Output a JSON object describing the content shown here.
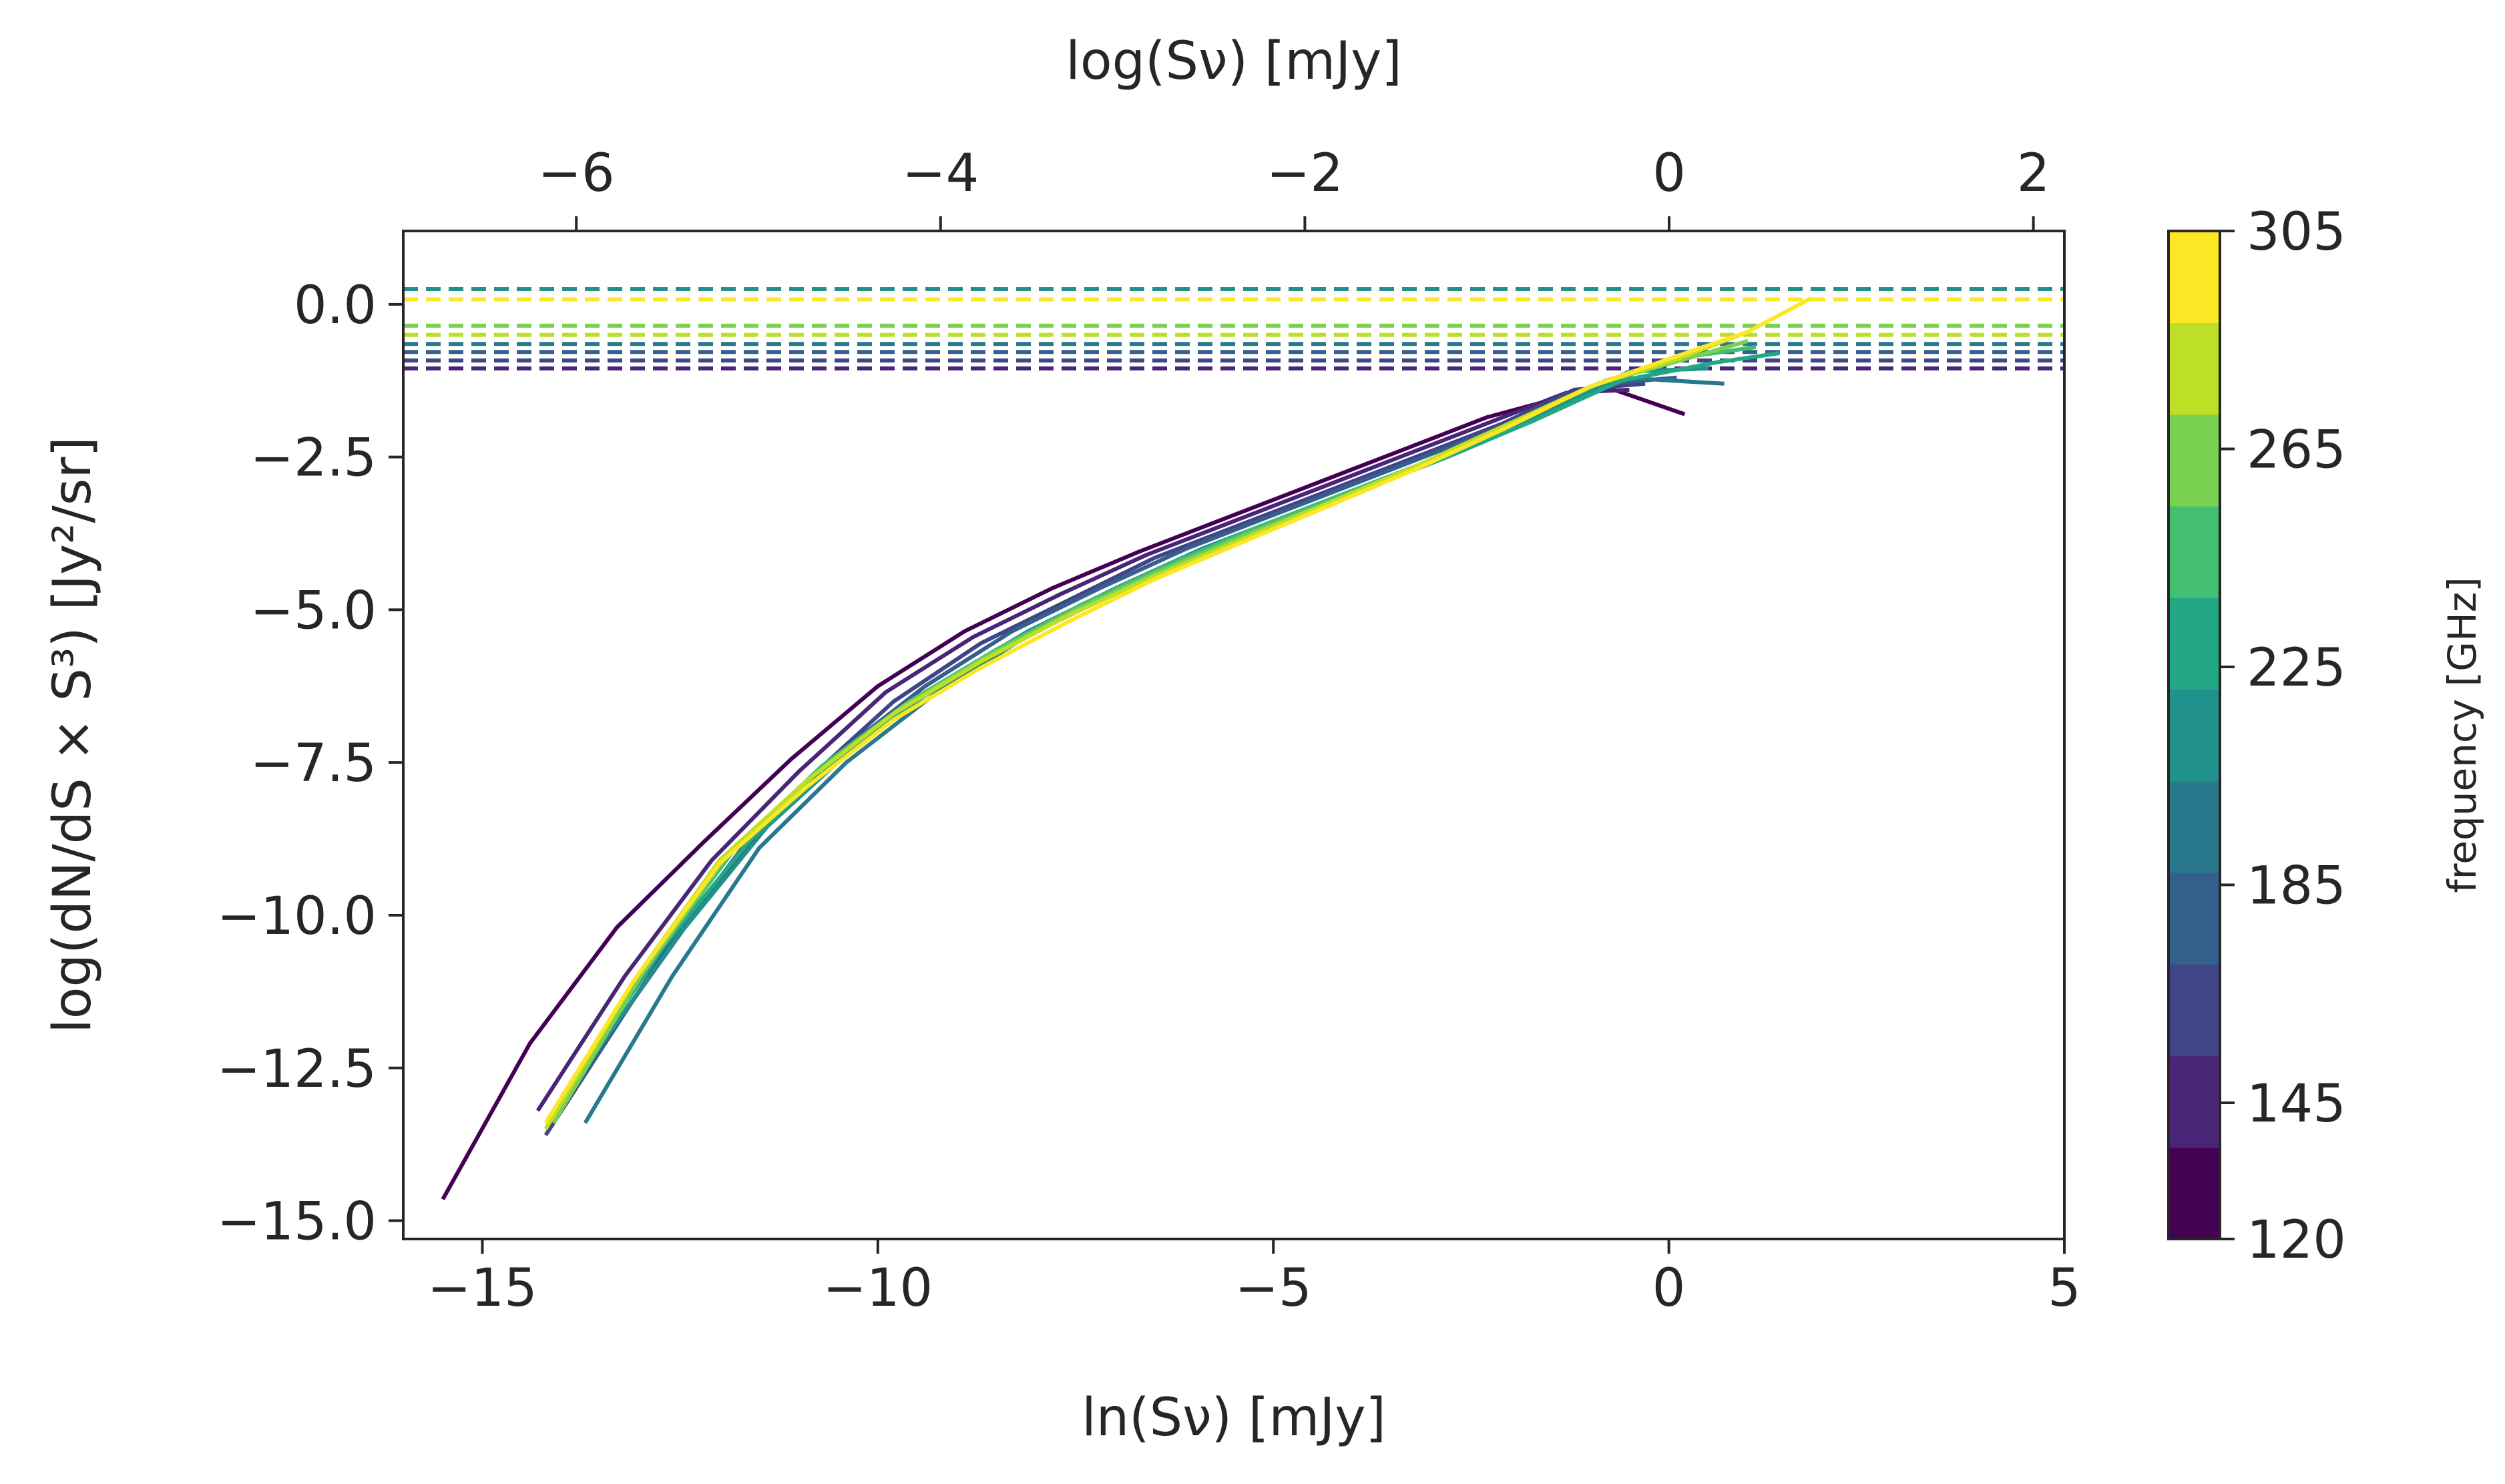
{
  "chart_data": {
    "type": "line",
    "xlabel_bottom": "ln(Sν) [mJy]",
    "xlabel_top": "log(Sν) [mJy]",
    "ylabel": "log(dN/dS  × S³) [Jy²/sr]",
    "xlim": [
      -16,
      5
    ],
    "ylim": [
      -15.3,
      1.2
    ],
    "top_xlim": [
      -6.95,
      2.17
    ],
    "x_ticks": [
      -15,
      -10,
      -5,
      0,
      5
    ],
    "x_tick_labels": [
      "−15",
      "−10",
      "−5",
      "0",
      "5"
    ],
    "top_ticks": [
      -6,
      -4,
      -2,
      0,
      2
    ],
    "top_tick_labels": [
      "−6",
      "−4",
      "−2",
      "0",
      "2"
    ],
    "y_ticks": [
      0.0,
      -2.5,
      -5.0,
      -7.5,
      -10.0,
      -12.5,
      -15.0
    ],
    "y_tick_labels": [
      "0.0",
      "−2.5",
      "−5.0",
      "−7.5",
      "−10.0",
      "−12.5",
      "−15.0"
    ],
    "grid": false,
    "colorbar": {
      "label": "frequency [GHz]",
      "range": [
        120,
        305
      ],
      "ticks": [
        120,
        145,
        185,
        225,
        265,
        305
      ],
      "tick_labels": [
        "120",
        "145",
        "185",
        "225",
        "265",
        "305"
      ],
      "colors": [
        "#440154",
        "#482576",
        "#414487",
        "#35608d",
        "#2a788e",
        "#21918c",
        "#22a884",
        "#43bf71",
        "#7ad151",
        "#bddf26",
        "#fde725"
      ]
    },
    "dashed_levels": [
      {
        "y": 0.25,
        "color": "#21918c"
      },
      {
        "y": 0.08,
        "color": "#fde725"
      },
      {
        "y": -0.35,
        "color": "#7ad151"
      },
      {
        "y": -0.5,
        "color": "#bddf26"
      },
      {
        "y": -0.65,
        "color": "#2a788e"
      },
      {
        "y": -0.78,
        "color": "#35608d"
      },
      {
        "y": -0.92,
        "color": "#414487"
      },
      {
        "y": -1.05,
        "color": "#482576"
      }
    ],
    "series": [
      {
        "color": "#440154",
        "x": [
          -15.5,
          -14.4,
          -13.3,
          -12.2,
          -11.1,
          -10.0,
          -8.9,
          -7.8,
          -6.7,
          -5.6,
          -4.5,
          -3.4,
          -2.3,
          -1.3,
          -0.8,
          0.2
        ],
        "y": [
          -14.65,
          -12.1,
          -10.2,
          -8.8,
          -7.45,
          -6.25,
          -5.35,
          -4.65,
          -4.05,
          -3.5,
          -2.95,
          -2.4,
          -1.85,
          -1.5,
          -1.35,
          -1.8
        ]
      },
      {
        "color": "#482576",
        "x": [
          -14.3,
          -13.2,
          -12.1,
          -11.0,
          -9.9,
          -8.8,
          -7.7,
          -6.6,
          -5.5,
          -4.4,
          -3.3,
          -2.2,
          -1.3,
          -0.5
        ],
        "y": [
          -13.2,
          -11.0,
          -9.1,
          -7.65,
          -6.35,
          -5.45,
          -4.75,
          -4.1,
          -3.55,
          -3.0,
          -2.45,
          -1.9,
          -1.45,
          -1.4
        ]
      },
      {
        "color": "#414487",
        "x": [
          -14.2,
          -13.1,
          -12.0,
          -10.9,
          -9.8,
          -8.7,
          -7.6,
          -6.5,
          -5.4,
          -4.3,
          -3.2,
          -2.1,
          -1.2,
          -0.3
        ],
        "y": [
          -13.6,
          -11.4,
          -9.4,
          -7.8,
          -6.5,
          -5.55,
          -4.85,
          -4.15,
          -3.6,
          -3.05,
          -2.5,
          -1.95,
          -1.4,
          -1.3
        ]
      },
      {
        "color": "#35608d",
        "x": [
          -13.8,
          -12.7,
          -11.6,
          -10.5,
          -9.4,
          -8.3,
          -7.2,
          -6.1,
          -5.0,
          -3.9,
          -2.8,
          -1.7,
          -0.8,
          0.1
        ],
        "y": [
          -12.8,
          -10.6,
          -8.7,
          -7.35,
          -6.25,
          -5.35,
          -4.65,
          -4.0,
          -3.45,
          -2.9,
          -2.35,
          -1.8,
          -1.3,
          -1.2
        ]
      },
      {
        "color": "#2a788e",
        "x": [
          -13.7,
          -12.6,
          -11.5,
          -10.4,
          -9.3,
          -8.2,
          -7.1,
          -6.0,
          -4.9,
          -3.8,
          -2.7,
          -1.6,
          -0.6,
          0.7
        ],
        "y": [
          -13.4,
          -11.0,
          -8.9,
          -7.5,
          -6.4,
          -5.5,
          -4.75,
          -4.1,
          -3.5,
          -2.95,
          -2.4,
          -1.8,
          -1.2,
          -1.3
        ]
      },
      {
        "color": "#21918c",
        "x": [
          -13.6,
          -12.5,
          -11.4,
          -10.3,
          -9.2,
          -8.1,
          -7.0,
          -5.9,
          -4.8,
          -3.7,
          -2.6,
          -1.5,
          -0.5,
          0.5
        ],
        "y": [
          -12.3,
          -10.3,
          -8.55,
          -7.25,
          -6.2,
          -5.35,
          -4.65,
          -4.0,
          -3.45,
          -2.9,
          -2.35,
          -1.75,
          -1.1,
          -1.05
        ]
      },
      {
        "color": "#22a884",
        "x": [
          -13.8,
          -12.7,
          -11.6,
          -10.5,
          -9.4,
          -8.3,
          -7.2,
          -6.1,
          -5.0,
          -3.9,
          -2.8,
          -1.7,
          -0.6,
          0.6,
          1.4
        ],
        "y": [
          -12.6,
          -10.5,
          -8.75,
          -7.45,
          -6.4,
          -5.55,
          -4.85,
          -4.2,
          -3.6,
          -3.05,
          -2.5,
          -1.9,
          -1.25,
          -0.95,
          -0.8
        ]
      },
      {
        "color": "#43bf71",
        "x": [
          -14.0,
          -12.9,
          -11.8,
          -10.7,
          -9.6,
          -8.5,
          -7.4,
          -6.3,
          -5.2,
          -4.1,
          -3.0,
          -1.9,
          -0.8,
          0.3,
          1.1
        ],
        "y": [
          -13.1,
          -10.8,
          -8.9,
          -7.55,
          -6.5,
          -5.65,
          -4.9,
          -4.25,
          -3.65,
          -3.1,
          -2.55,
          -1.9,
          -1.25,
          -0.85,
          -0.7
        ]
      },
      {
        "color": "#7ad151",
        "x": [
          -14.1,
          -13.0,
          -11.9,
          -10.8,
          -9.7,
          -8.6,
          -7.5,
          -6.4,
          -5.3,
          -4.2,
          -3.1,
          -2.0,
          -0.9,
          0.2,
          1.0
        ],
        "y": [
          -13.4,
          -11.0,
          -9.0,
          -7.7,
          -6.6,
          -5.75,
          -5.0,
          -4.35,
          -3.75,
          -3.2,
          -2.6,
          -1.95,
          -1.3,
          -0.9,
          -0.6
        ]
      },
      {
        "color": "#bddf26",
        "x": [
          -14.2,
          -13.1,
          -12.0,
          -10.9,
          -9.8,
          -8.7,
          -7.6,
          -6.5,
          -5.4,
          -4.3,
          -3.2,
          -2.1,
          -1.0,
          0.1,
          0.9
        ],
        "y": [
          -13.5,
          -11.1,
          -9.1,
          -7.8,
          -6.7,
          -5.85,
          -5.1,
          -4.45,
          -3.85,
          -3.25,
          -2.65,
          -2.0,
          -1.35,
          -0.9,
          -0.5
        ]
      },
      {
        "color": "#fde725",
        "x": [
          -14.2,
          -13.1,
          -12.0,
          -10.9,
          -9.8,
          -8.7,
          -7.6,
          -6.5,
          -5.4,
          -4.3,
          -3.2,
          -2.1,
          -1.0,
          0.1,
          1.0,
          1.8
        ],
        "y": [
          -13.4,
          -11.1,
          -9.15,
          -7.9,
          -6.8,
          -5.95,
          -5.2,
          -4.5,
          -3.9,
          -3.3,
          -2.7,
          -2.05,
          -1.35,
          -0.85,
          -0.45,
          0.1
        ]
      }
    ]
  }
}
